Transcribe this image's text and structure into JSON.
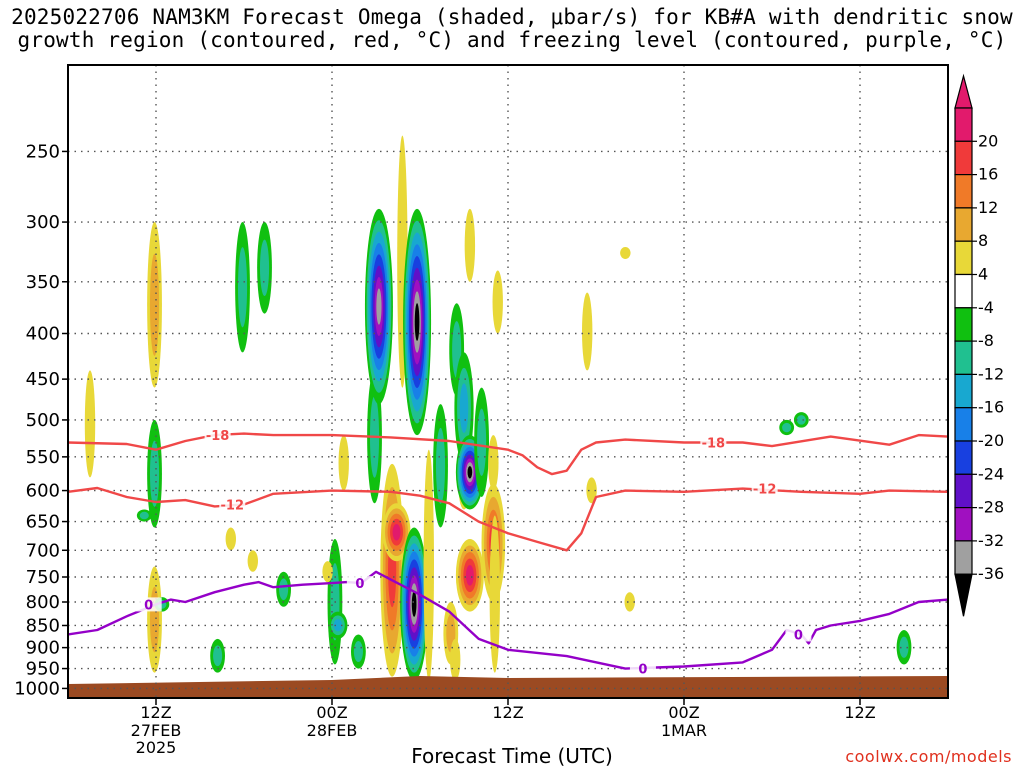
{
  "title": {
    "line1": "2025022706 NAM3KM Forecast Omega (shaded, μbar/s) for KB#A with dendritic snow",
    "line2": "growth region (contoured, red, °C) and freezing level (contoured, purple, °C)"
  },
  "credit": "coolwx.com/models",
  "chart_data": {
    "type": "heatmap",
    "title": "2025022706 NAM3KM Forecast Omega (shaded, μbar/s) for KB#A with dendritic snow growth region (contoured, red, °C) and freezing level (contoured, purple, °C)",
    "xlabel": "Forecast Time (UTC)",
    "ylabel": "",
    "x_ticks": [
      {
        "hour": 12,
        "label": "12Z",
        "sub1": "27FEB",
        "sub2": "2025"
      },
      {
        "hour": 24,
        "label": "00Z",
        "sub1": "28FEB",
        "sub2": ""
      },
      {
        "hour": 36,
        "label": "12Z",
        "sub1": "",
        "sub2": ""
      },
      {
        "hour": 48,
        "label": "00Z",
        "sub1": "1MAR",
        "sub2": ""
      },
      {
        "hour": 60,
        "label": "12Z",
        "sub1": "",
        "sub2": ""
      }
    ],
    "xlim_hours_from_00z_27feb": [
      6,
      66
    ],
    "y_ticks_hpa": [
      250,
      300,
      350,
      400,
      450,
      500,
      550,
      600,
      650,
      700,
      750,
      800,
      850,
      900,
      950,
      1000
    ],
    "ylim_hpa": [
      200,
      1025
    ],
    "y_scale": "log",
    "grid": true,
    "colorbar": {
      "labels": [
        "20",
        "16",
        "12",
        "8",
        "4",
        "-4",
        "-8",
        "-12",
        "-16",
        "-20",
        "-24",
        "-28",
        "-32",
        "-36"
      ],
      "colors": [
        "#e21a6c",
        "#f03a3a",
        "#f07a28",
        "#e8a830",
        "#e8d838",
        "#ffffff",
        "#10c010",
        "#20c090",
        "#18a8d0",
        "#1880e8",
        "#1840e0",
        "#6010c8",
        "#a010c0",
        "#a0a0a0",
        "#000000"
      ]
    },
    "contours": {
      "dgz": {
        "color": "#f04848",
        "levels": [
          {
            "value": -18,
            "label": "-18",
            "label_hours": [
              16.2,
              50.0
            ],
            "pressures": [
              [
                6,
                530
              ],
              [
                10,
                532
              ],
              [
                12,
                540
              ],
              [
                14,
                528
              ],
              [
                16,
                520
              ],
              [
                18,
                518
              ],
              [
                20,
                520
              ],
              [
                24,
                520
              ],
              [
                28,
                523
              ],
              [
                32,
                528
              ],
              [
                36,
                540
              ],
              [
                37,
                548
              ],
              [
                38,
                565
              ],
              [
                39,
                575
              ],
              [
                40,
                570
              ],
              [
                41,
                540
              ],
              [
                42,
                530
              ],
              [
                44,
                526
              ],
              [
                48,
                530
              ],
              [
                52,
                530
              ],
              [
                54,
                535
              ],
              [
                58,
                522
              ],
              [
                62,
                533
              ],
              [
                64,
                520
              ],
              [
                66,
                522
              ]
            ]
          },
          {
            "value": -12,
            "label": "-12",
            "label_hours": [
              17.2,
              53.5
            ],
            "pressures": [
              [
                6,
                602
              ],
              [
                8,
                596
              ],
              [
                10,
                610
              ],
              [
                12,
                618
              ],
              [
                14,
                615
              ],
              [
                16,
                625
              ],
              [
                18,
                622
              ],
              [
                20,
                605
              ],
              [
                24,
                600
              ],
              [
                28,
                602
              ],
              [
                30,
                608
              ],
              [
                32,
                620
              ],
              [
                34,
                650
              ],
              [
                36,
                670
              ],
              [
                38,
                685
              ],
              [
                40,
                700
              ],
              [
                41,
                670
              ],
              [
                42,
                610
              ],
              [
                44,
                600
              ],
              [
                48,
                602
              ],
              [
                52,
                597
              ],
              [
                56,
                602
              ],
              [
                60,
                605
              ],
              [
                62,
                600
              ],
              [
                66,
                602
              ]
            ]
          }
        ]
      },
      "freezing": {
        "color": "#9400c8",
        "levels": [
          {
            "value": 0,
            "label": "0",
            "label_hours": [
              11.5,
              25.9,
              45.2,
              55.8
            ],
            "pressures": [
              [
                6,
                870
              ],
              [
                8,
                860
              ],
              [
                10,
                830
              ],
              [
                12,
                805
              ],
              [
                13,
                795
              ],
              [
                14,
                800
              ],
              [
                16,
                780
              ],
              [
                18,
                765
              ],
              [
                19,
                760
              ],
              [
                20,
                770
              ],
              [
                22,
                765
              ],
              [
                24,
                762
              ],
              [
                25,
                760
              ],
              [
                26,
                762
              ],
              [
                27,
                740
              ],
              [
                28,
                755
              ],
              [
                30,
                785
              ],
              [
                32,
                820
              ],
              [
                34,
                880
              ],
              [
                36,
                905
              ],
              [
                40,
                920
              ],
              [
                44,
                950
              ],
              [
                48,
                945
              ],
              [
                52,
                935
              ],
              [
                54,
                905
              ],
              [
                55,
                860
              ],
              [
                56,
                870
              ],
              [
                56.5,
                890
              ],
              [
                57,
                860
              ],
              [
                58,
                850
              ],
              [
                60,
                840
              ],
              [
                62,
                825
              ],
              [
                64,
                800
              ],
              [
                66,
                795
              ]
            ]
          }
        ]
      }
    },
    "omega_cells": [
      {
        "hour": 7.5,
        "p_top": 440,
        "p_bot": 580,
        "peak": 4
      },
      {
        "hour": 11.9,
        "p_top": 300,
        "p_bot": 460,
        "peak": 8
      },
      {
        "hour": 11.9,
        "p_top": 730,
        "p_bot": 960,
        "peak": 8
      },
      {
        "hour": 11.9,
        "p_top": 500,
        "p_bot": 660,
        "peak": -8
      },
      {
        "hour": 12.4,
        "p_top": 790,
        "p_bot": 820,
        "peak": -8
      },
      {
        "hour": 11.2,
        "p_top": 630,
        "p_bot": 650,
        "peak": -8
      },
      {
        "hour": 17.9,
        "p_top": 300,
        "p_bot": 420,
        "peak": -8
      },
      {
        "hour": 19.4,
        "p_top": 300,
        "p_bot": 380,
        "peak": -8
      },
      {
        "hour": 16.2,
        "p_top": 880,
        "p_bot": 960,
        "peak": -8
      },
      {
        "hour": 17.1,
        "p_top": 660,
        "p_bot": 700,
        "peak": 4
      },
      {
        "hour": 18.6,
        "p_top": 700,
        "p_bot": 740,
        "peak": 4
      },
      {
        "hour": 20.7,
        "p_top": 740,
        "p_bot": 810,
        "peak": -8
      },
      {
        "hour": 24.2,
        "p_top": 680,
        "p_bot": 940,
        "peak": -8
      },
      {
        "hour": 24.4,
        "p_top": 820,
        "p_bot": 880,
        "peak": -12
      },
      {
        "hour": 23.7,
        "p_top": 720,
        "p_bot": 760,
        "peak": 4
      },
      {
        "hour": 24.8,
        "p_top": 520,
        "p_bot": 600,
        "peak": 4
      },
      {
        "hour": 25.8,
        "p_top": 870,
        "p_bot": 950,
        "peak": -8
      },
      {
        "hour": 26.9,
        "p_top": 440,
        "p_bot": 620,
        "peak": -8
      },
      {
        "hour": 27.2,
        "p_top": 290,
        "p_bot": 480,
        "peak": -32
      },
      {
        "hour": 28.8,
        "p_top": 240,
        "p_bot": 460,
        "peak": 4
      },
      {
        "hour": 28.1,
        "p_top": 560,
        "p_bot": 970,
        "peak": 16
      },
      {
        "hour": 28.4,
        "p_top": 620,
        "p_bot": 720,
        "peak": 20
      },
      {
        "hour": 29.6,
        "p_top": 660,
        "p_bot": 980,
        "peak": -36
      },
      {
        "hour": 29.8,
        "p_top": 290,
        "p_bot": 520,
        "peak": -36
      },
      {
        "hour": 30.6,
        "p_top": 540,
        "p_bot": 980,
        "peak": 4
      },
      {
        "hour": 31.4,
        "p_top": 480,
        "p_bot": 660,
        "peak": -8
      },
      {
        "hour": 32.1,
        "p_top": 800,
        "p_bot": 940,
        "peak": 8
      },
      {
        "hour": 32.4,
        "p_top": 880,
        "p_bot": 980,
        "peak": 4
      },
      {
        "hour": 32.5,
        "p_top": 370,
        "p_bot": 470,
        "peak": -8
      },
      {
        "hour": 33.0,
        "p_top": 420,
        "p_bot": 560,
        "peak": -12
      },
      {
        "hour": 33.4,
        "p_top": 290,
        "p_bot": 350,
        "peak": 4
      },
      {
        "hour": 33.0,
        "p_top": 570,
        "p_bot": 630,
        "peak": 4
      },
      {
        "hour": 33.4,
        "p_top": 520,
        "p_bot": 630,
        "peak": -36
      },
      {
        "hour": 33.4,
        "p_top": 680,
        "p_bot": 820,
        "peak": 20
      },
      {
        "hour": 34.2,
        "p_top": 460,
        "p_bot": 610,
        "peak": -8
      },
      {
        "hour": 35.0,
        "p_top": 590,
        "p_bot": 800,
        "peak": 16
      },
      {
        "hour": 35.1,
        "p_top": 640,
        "p_bot": 960,
        "peak": 4
      },
      {
        "hour": 35.0,
        "p_top": 520,
        "p_bot": 600,
        "peak": 4
      },
      {
        "hour": 35.3,
        "p_top": 340,
        "p_bot": 400,
        "peak": 4
      },
      {
        "hour": 41.4,
        "p_top": 360,
        "p_bot": 440,
        "peak": 4
      },
      {
        "hour": 41.7,
        "p_top": 580,
        "p_bot": 620,
        "peak": 4
      },
      {
        "hour": 44.0,
        "p_top": 320,
        "p_bot": 330,
        "peak": 4
      },
      {
        "hour": 44.3,
        "p_top": 780,
        "p_bot": 820,
        "peak": 4
      },
      {
        "hour": 55.0,
        "p_top": 500,
        "p_bot": 520,
        "peak": -8
      },
      {
        "hour": 56.0,
        "p_top": 490,
        "p_bot": 510,
        "peak": -8
      },
      {
        "hour": 63.0,
        "p_top": 860,
        "p_bot": 940,
        "peak": -8
      }
    ]
  }
}
